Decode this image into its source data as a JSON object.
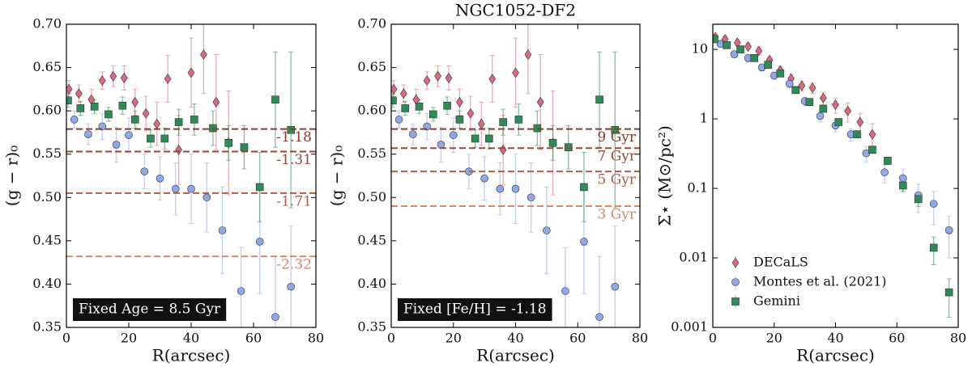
{
  "chart_data": [
    {
      "type": "scatter",
      "ylabel": "(g − r)₀",
      "xlabel": "R(arcsec)",
      "xlim": [
        0,
        80
      ],
      "xticks": [
        0,
        20,
        40,
        60,
        80
      ],
      "ylim": [
        0.35,
        0.7
      ],
      "yticks": [
        0.35,
        {
          "value": 0.4,
          "label": "0.40"
        },
        0.45,
        {
          "value": 0.5,
          "label": "0.50"
        },
        0.55,
        {
          "value": 0.6,
          "label": "0.60"
        },
        0.65,
        {
          "value": 0.7,
          "label": "0.70"
        }
      ],
      "box_label": "Fixed Age = 8.5 Gyr",
      "hlines": [
        {
          "value": 0.579,
          "label": "-1.18",
          "color": "#8b3a2a"
        },
        {
          "value": 0.553,
          "label": "-1.31",
          "color": "#9e4634"
        },
        {
          "value": 0.505,
          "label": "-1.71",
          "color": "#b85a44"
        },
        {
          "value": 0.432,
          "label": "-2.32",
          "color": "#d9866a"
        }
      ],
      "series": [
        {
          "name": "DECaLS",
          "marker": "diamond",
          "color": "#d9697e",
          "x": [
            0.8,
            4,
            8,
            11.5,
            15,
            18.5,
            22,
            25.5,
            29,
            32.5,
            36,
            40,
            44,
            48,
            52
          ],
          "values": [
            0.625,
            0.62,
            0.613,
            0.635,
            0.64,
            0.638,
            0.61,
            0.597,
            0.585,
            0.637,
            0.555,
            0.644,
            0.665,
            0.61,
            0.563
          ],
          "errors": [
            0.01,
            0.01,
            0.012,
            0.01,
            0.012,
            0.014,
            0.015,
            0.02,
            0.025,
            0.027,
            0.04,
            0.04,
            0.045,
            0.055,
            0.06
          ]
        },
        {
          "name": "Montes et al. (2021)",
          "marker": "circle",
          "color": "#8fa8e8",
          "x": [
            2.5,
            7,
            11.5,
            16,
            20,
            25,
            30,
            35,
            40,
            45,
            50,
            56,
            62,
            67,
            72
          ],
          "values": [
            0.59,
            0.573,
            0.582,
            0.561,
            0.572,
            0.53,
            0.522,
            0.51,
            0.51,
            0.5,
            0.462,
            0.392,
            0.449,
            0.362,
            0.397
          ],
          "errors": [
            0.01,
            0.012,
            0.015,
            0.02,
            0.02,
            0.02,
            0.025,
            0.03,
            0.04,
            0.04,
            0.05,
            0.05,
            0.06,
            0.07,
            0.07
          ]
        },
        {
          "name": "Gemini",
          "marker": "square",
          "color": "#2e8b57",
          "x": [
            0.5,
            4.5,
            9,
            13.5,
            18,
            22,
            27,
            31.5,
            36,
            41,
            47,
            52,
            57,
            62,
            67,
            72
          ],
          "values": [
            0.612,
            0.603,
            0.605,
            0.596,
            0.606,
            0.59,
            0.568,
            0.568,
            0.587,
            0.59,
            0.58,
            0.563,
            0.558,
            0.512,
            0.613,
            0.578
          ],
          "errors": [
            0.008,
            0.008,
            0.008,
            0.008,
            0.01,
            0.01,
            0.01,
            0.012,
            0.015,
            0.018,
            0.02,
            0.02,
            0.025,
            0.04,
            0.055,
            0.09
          ]
        }
      ]
    },
    {
      "type": "scatter",
      "title": "NGC1052-DF2",
      "ylabel": "(g − r)₀",
      "xlabel": "R(arcsec)",
      "xlim": [
        0,
        80
      ],
      "xticks": [
        0,
        20,
        40,
        60,
        80
      ],
      "ylim": [
        0.35,
        0.7
      ],
      "yticks": [
        0.35,
        {
          "value": 0.4,
          "label": "0.40"
        },
        0.45,
        {
          "value": 0.5,
          "label": "0.50"
        },
        0.55,
        {
          "value": 0.6,
          "label": "0.60"
        },
        0.65,
        {
          "value": 0.7,
          "label": "0.70"
        }
      ],
      "box_label": "Fixed [Fe/H] = -1.18",
      "hlines": [
        {
          "value": 0.579,
          "label": "9 Gyr",
          "color": "#8b3a2a"
        },
        {
          "value": 0.557,
          "label": "7 Gyr",
          "color": "#9e4634"
        },
        {
          "value": 0.53,
          "label": "5 Gyr",
          "color": "#b85a44"
        },
        {
          "value": 0.49,
          "label": "3 Gyr",
          "color": "#d9866a"
        }
      ],
      "series": [
        {
          "name": "DECaLS",
          "marker": "diamond",
          "color": "#d9697e",
          "x": [
            0.8,
            4,
            8,
            11.5,
            15,
            18.5,
            22,
            25.5,
            29,
            32.5,
            36,
            40,
            44,
            48,
            52
          ],
          "values": [
            0.625,
            0.62,
            0.613,
            0.635,
            0.64,
            0.638,
            0.61,
            0.597,
            0.585,
            0.637,
            0.555,
            0.644,
            0.665,
            0.61,
            0.563
          ],
          "errors": [
            0.01,
            0.01,
            0.012,
            0.01,
            0.012,
            0.014,
            0.015,
            0.02,
            0.025,
            0.027,
            0.04,
            0.04,
            0.045,
            0.055,
            0.06
          ]
        },
        {
          "name": "Montes et al. (2021)",
          "marker": "circle",
          "color": "#8fa8e8",
          "x": [
            2.5,
            7,
            11.5,
            16,
            20,
            25,
            30,
            35,
            40,
            45,
            50,
            56,
            62,
            67,
            72
          ],
          "values": [
            0.59,
            0.573,
            0.582,
            0.561,
            0.572,
            0.53,
            0.522,
            0.51,
            0.51,
            0.5,
            0.462,
            0.392,
            0.449,
            0.362,
            0.397
          ],
          "errors": [
            0.01,
            0.012,
            0.015,
            0.02,
            0.02,
            0.02,
            0.025,
            0.03,
            0.04,
            0.04,
            0.05,
            0.05,
            0.06,
            0.07,
            0.07
          ]
        },
        {
          "name": "Gemini",
          "marker": "square",
          "color": "#2e8b57",
          "x": [
            0.5,
            4.5,
            9,
            13.5,
            18,
            22,
            27,
            31.5,
            36,
            41,
            47,
            52,
            57,
            62,
            67,
            72
          ],
          "values": [
            0.612,
            0.603,
            0.605,
            0.596,
            0.606,
            0.59,
            0.568,
            0.568,
            0.587,
            0.59,
            0.58,
            0.563,
            0.558,
            0.512,
            0.613,
            0.578
          ],
          "errors": [
            0.008,
            0.008,
            0.008,
            0.008,
            0.01,
            0.01,
            0.01,
            0.012,
            0.015,
            0.018,
            0.02,
            0.02,
            0.025,
            0.04,
            0.055,
            0.09
          ]
        }
      ]
    },
    {
      "type": "scatter",
      "ylabel": "Σ⋆ (M⊙/pc²)",
      "xlabel": "R(arcsec)",
      "xlim": [
        0,
        80
      ],
      "xticks": [
        0,
        20,
        40,
        60,
        80
      ],
      "ylog": true,
      "ylim": [
        0.001,
        23
      ],
      "yticks": [
        0.001,
        0.01,
        0.1,
        1,
        10
      ],
      "legend": "lower left",
      "series": [
        {
          "name": "DECaLS",
          "marker": "diamond",
          "color": "#d9697e",
          "x": [
            0.8,
            4,
            8,
            11.5,
            15,
            18.5,
            22,
            25.5,
            29,
            32.5,
            36,
            40,
            44,
            48,
            52
          ],
          "values": [
            15,
            14,
            12.5,
            11,
            9.5,
            7,
            5,
            3.8,
            3,
            2.8,
            2,
            1.6,
            1.3,
            0.9,
            0.6
          ],
          "errors": [
            1.5,
            1.4,
            1.3,
            1.2,
            1.1,
            0.9,
            0.7,
            0.6,
            0.5,
            0.5,
            0.4,
            0.4,
            0.4,
            0.3,
            0.25
          ]
        },
        {
          "name": "Montes et al. (2021)",
          "marker": "circle",
          "color": "#8fa8e8",
          "x": [
            2.5,
            7,
            11.5,
            16,
            20,
            25,
            30,
            35,
            40,
            45,
            50,
            56,
            62,
            67,
            72,
            77
          ],
          "values": [
            12,
            8.5,
            7.5,
            5.5,
            4.2,
            3.2,
            1.8,
            1.1,
            0.8,
            0.6,
            0.32,
            0.17,
            0.14,
            0.08,
            0.06,
            0.025
          ],
          "errors": [
            1.2,
            0.9,
            0.8,
            0.6,
            0.5,
            0.4,
            0.25,
            0.2,
            0.15,
            0.12,
            0.08,
            0.05,
            0.05,
            0.035,
            0.03,
            0.015
          ]
        },
        {
          "name": "Gemini",
          "marker": "square",
          "color": "#2e8b57",
          "x": [
            0.5,
            4.5,
            9,
            13.5,
            18,
            22,
            27,
            31.5,
            36,
            41,
            47,
            52,
            57,
            62,
            67,
            72,
            77
          ],
          "values": [
            14,
            11.5,
            10,
            7.5,
            6,
            4.5,
            2.6,
            1.75,
            1.4,
            0.9,
            0.6,
            0.36,
            0.25,
            0.11,
            0.07,
            0.014,
            0.0032
          ],
          "errors": [
            0.8,
            0.7,
            0.6,
            0.5,
            0.4,
            0.3,
            0.2,
            0.15,
            0.12,
            0.08,
            0.06,
            0.04,
            0.03,
            0.02,
            0.015,
            0.006,
            0.0018
          ]
        }
      ]
    }
  ]
}
